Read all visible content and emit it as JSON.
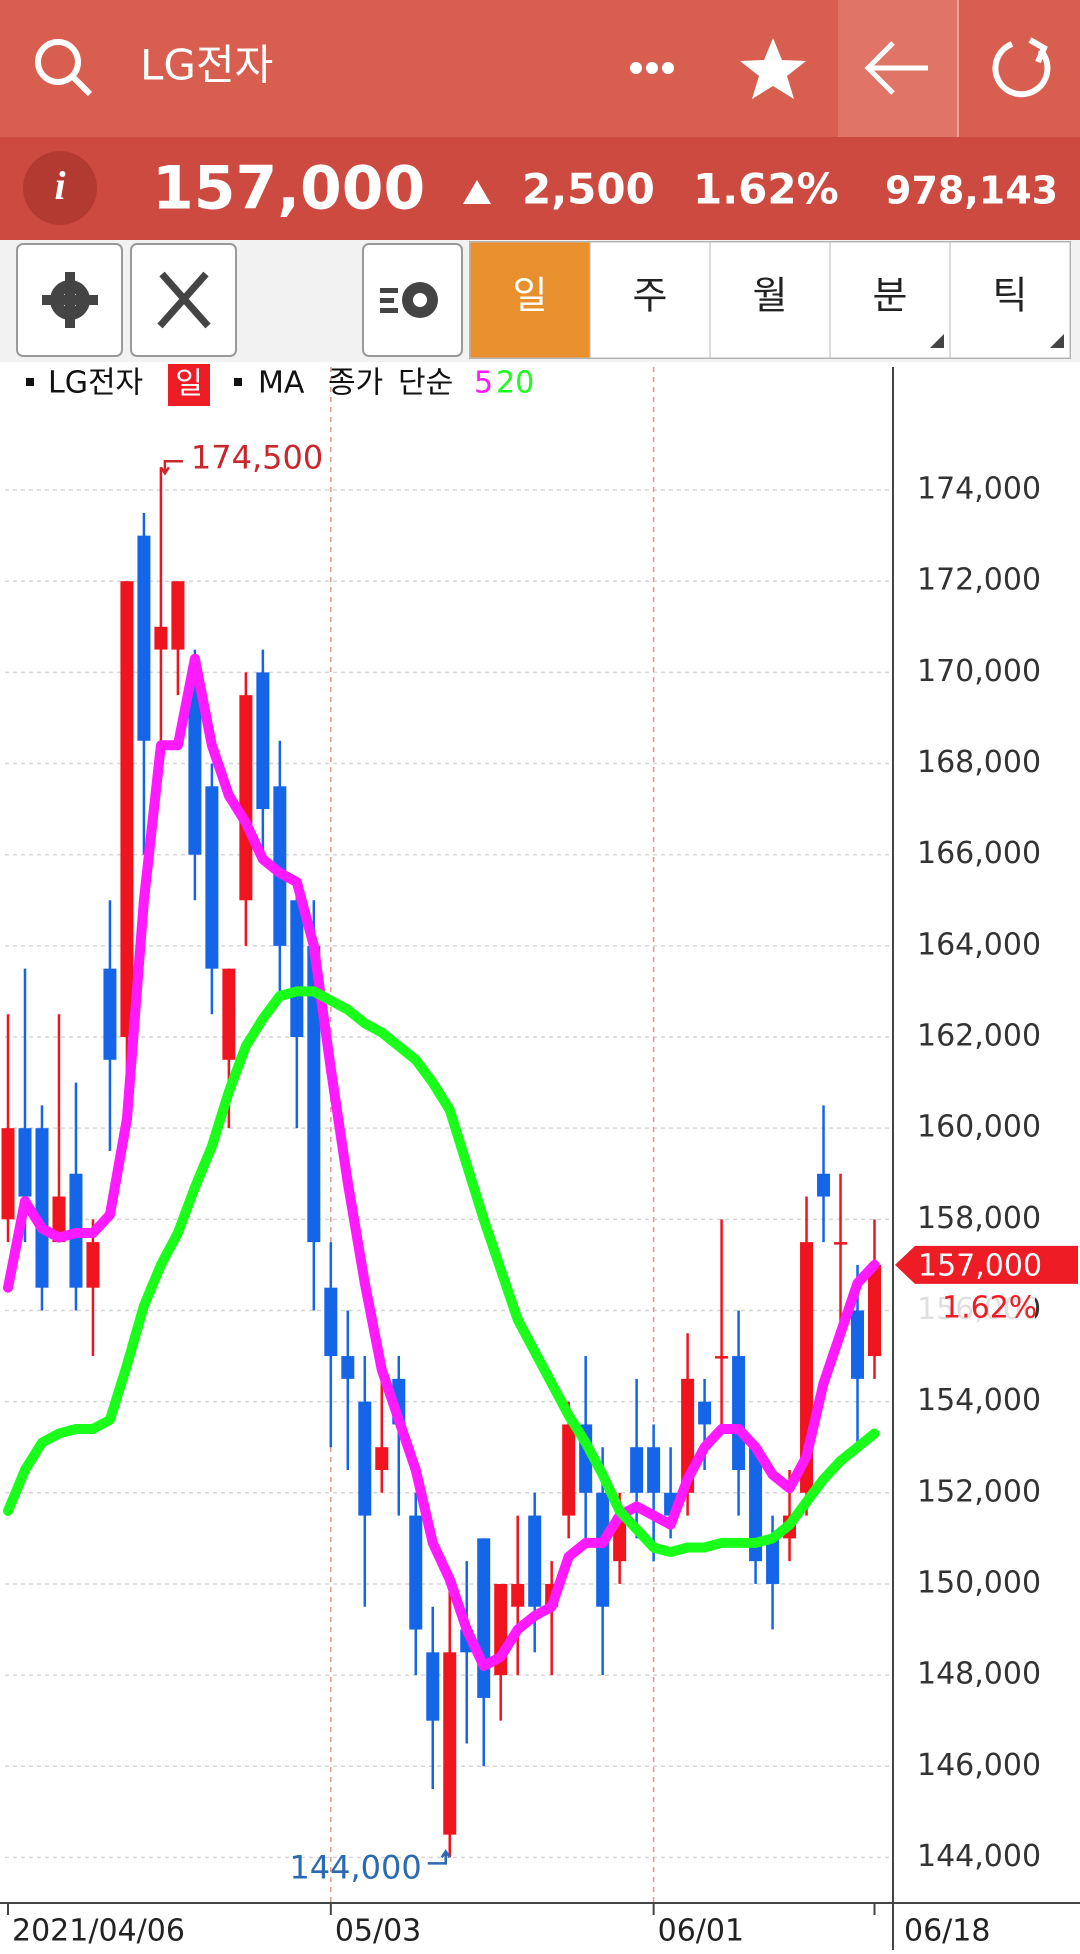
{
  "header": {
    "title": "LG전자"
  },
  "quote": {
    "price": "157,000",
    "change": "2,500",
    "change_pct": "1.62%",
    "volume": "978,143"
  },
  "tabs": [
    "일",
    "주",
    "월",
    "분",
    "틱"
  ],
  "chart_data": {
    "type": "candlestick",
    "legend": {
      "symbol": "LG전자",
      "period": "일",
      "indicator": "MA",
      "price": "종가",
      "method": "단순"
    },
    "categories": [
      "2021/04/06",
      null,
      null,
      null,
      null,
      null,
      null,
      null,
      null,
      null,
      null,
      null,
      null,
      null,
      null,
      null,
      null,
      null,
      null,
      "05/03",
      null,
      null,
      null,
      null,
      null,
      null,
      null,
      null,
      null,
      null,
      null,
      null,
      null,
      null,
      null,
      null,
      null,
      null,
      "06/01",
      null,
      null,
      null,
      null,
      null,
      null,
      null,
      null,
      null,
      null,
      null,
      null,
      "06/18"
    ],
    "open": [
      158000,
      160000,
      160000,
      157500,
      159000,
      156500,
      163500,
      162000,
      173000,
      170500,
      170500,
      170000,
      167500,
      161500,
      165000,
      170000,
      167500,
      165000,
      164000,
      156500,
      155000,
      154000,
      152500,
      154500,
      151500,
      148500,
      144500,
      149000,
      151000,
      148000,
      149500,
      151500,
      149500,
      151500,
      153500,
      152000,
      150500,
      153000,
      153000,
      152000,
      152000,
      154000,
      155000,
      155000,
      153000,
      151000,
      151000,
      152000,
      159000,
      157500,
      156000,
      155000
    ],
    "high": [
      162500,
      163500,
      160500,
      162500,
      161000,
      158000,
      165000,
      172000,
      173500,
      174500,
      172000,
      170500,
      168000,
      163500,
      170000,
      170500,
      168500,
      165500,
      165000,
      157500,
      156000,
      155000,
      154500,
      155000,
      152000,
      149500,
      150000,
      150500,
      151000,
      150000,
      151500,
      152000,
      150500,
      154000,
      155000,
      153000,
      152000,
      154500,
      153500,
      153000,
      155500,
      154500,
      158000,
      156000,
      153000,
      151500,
      152500,
      158500,
      160500,
      159000,
      157000,
      158000
    ],
    "low": [
      157500,
      157500,
      156000,
      157500,
      156000,
      155000,
      159500,
      160500,
      166000,
      168500,
      169500,
      165000,
      162500,
      160000,
      164000,
      166000,
      163000,
      160000,
      156000,
      153000,
      152500,
      149500,
      152000,
      151500,
      148000,
      145500,
      144000,
      146500,
      146000,
      147000,
      148000,
      148500,
      148000,
      151000,
      151000,
      148000,
      150000,
      151000,
      150500,
      151000,
      151500,
      152500,
      153500,
      151500,
      150000,
      149000,
      150500,
      151500,
      157500,
      155500,
      153000,
      154500
    ],
    "close": [
      160000,
      158500,
      156500,
      158500,
      156500,
      157500,
      161500,
      172000,
      168500,
      171000,
      172000,
      166000,
      163500,
      163500,
      169500,
      167000,
      164000,
      162000,
      157500,
      155000,
      154500,
      151500,
      153000,
      153500,
      149000,
      147000,
      148500,
      148500,
      147500,
      150000,
      150000,
      149500,
      150000,
      153500,
      152000,
      149500,
      151500,
      152000,
      152000,
      151500,
      154500,
      153500,
      155000,
      152500,
      150500,
      150000,
      151500,
      157500,
      158500,
      157500,
      154500,
      157000
    ],
    "up_color": "#f0141e",
    "down_color": "#1565e8",
    "series": [
      {
        "name": "5",
        "color": "#ff1aff",
        "values": [
          156500,
          158400,
          157800,
          157600,
          157700,
          157700,
          158100,
          160200,
          165000,
          168400,
          168400,
          170300,
          168400,
          167300,
          166700,
          165900,
          165600,
          165400,
          164000,
          161300,
          158800,
          156600,
          154700,
          153600,
          152500,
          150900,
          150100,
          149000,
          148200,
          148400,
          149000,
          149300,
          149500,
          150600,
          150900,
          150900,
          151500,
          151700,
          151500,
          151300,
          152300,
          153000,
          153400,
          153400,
          153000,
          152400,
          152100,
          152800,
          154400,
          155500,
          156600,
          157000
        ]
      },
      {
        "name": "20",
        "color": "#1aff1a",
        "values": [
          151600,
          152500,
          153100,
          153300,
          153400,
          153400,
          153600,
          154800,
          156100,
          157000,
          157700,
          158700,
          159600,
          160800,
          161800,
          162400,
          162900,
          163000,
          163000,
          162800,
          162600,
          162300,
          162100,
          161800,
          161500,
          161000,
          160400,
          159200,
          158000,
          156900,
          155800,
          155100,
          154400,
          153700,
          153100,
          152400,
          151600,
          151200,
          150800,
          150700,
          150800,
          150800,
          150900,
          150900,
          150900,
          151000,
          151300,
          151800,
          152300,
          152700,
          153000,
          153300
        ]
      }
    ],
    "ylim": [
      143000,
      176700
    ],
    "yticks": [
      {
        "value": 144000,
        "label": "144,000"
      },
      {
        "value": 146000,
        "label": "146,000"
      },
      {
        "value": 148000,
        "label": "148,000"
      },
      {
        "value": 150000,
        "label": "150,000"
      },
      {
        "value": 152000,
        "label": "152,000"
      },
      {
        "value": 154000,
        "label": "154,000"
      },
      {
        "value": 156000,
        "label": "156,000"
      },
      {
        "value": 158000,
        "label": "158,000"
      },
      {
        "value": 160000,
        "label": "160,000"
      },
      {
        "value": 162000,
        "label": "162,000"
      },
      {
        "value": 164000,
        "label": "164,000"
      },
      {
        "value": 166000,
        "label": "166,000"
      },
      {
        "value": 168000,
        "label": "168,000"
      },
      {
        "value": 170000,
        "label": "170,000"
      },
      {
        "value": 172000,
        "label": "172,000"
      },
      {
        "value": 174000,
        "label": "174,000"
      }
    ],
    "grid": true,
    "max_label": {
      "value": 174500,
      "label": "174,500"
    },
    "min_label": {
      "value": 144000,
      "label": "144,000"
    },
    "last_label": {
      "value": 157000,
      "label": "157,000"
    },
    "last_change": "1.62%"
  }
}
